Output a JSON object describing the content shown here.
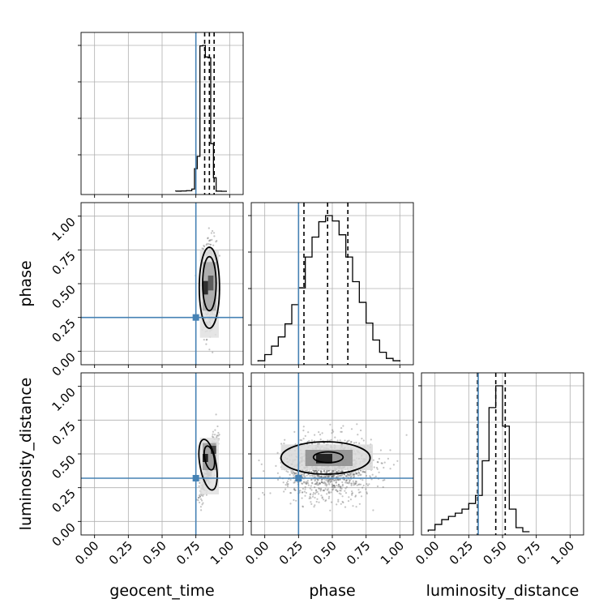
{
  "chart_data": {
    "type": "corner",
    "parameters": [
      "geocent_time",
      "phase",
      "luminosity_distance"
    ],
    "injection": {
      "geocent_time": 0.75,
      "phase": 0.25,
      "luminosity_distance": 0.32
    },
    "axis_range": [
      -0.1,
      1.1
    ],
    "tick_values": [
      0.0,
      0.25,
      0.5,
      0.75,
      1.0
    ],
    "tick_labels": [
      "0.00",
      "0.25",
      "0.50",
      "0.75",
      "1.00"
    ],
    "grid": true,
    "colors": {
      "injection": "#4682b4",
      "contour": "#000000",
      "points": "#555555"
    },
    "marginals": {
      "geocent_time": {
        "quantiles": [
          0.815,
          0.85,
          0.885
        ],
        "bin_edges": [
          0.6,
          0.64,
          0.68,
          0.72,
          0.74,
          0.76,
          0.78,
          0.8,
          0.82,
          0.84,
          0.86,
          0.88,
          0.9,
          0.94,
          0.98
        ],
        "counts": [
          1,
          2,
          4,
          14,
          142,
          220,
          915,
          918,
          845,
          840,
          300,
          85,
          1,
          0
        ]
      },
      "phase": {
        "quantiles": [
          0.29,
          0.465,
          0.615
        ],
        "bin_edges": [
          -0.05,
          0.0,
          0.05,
          0.1,
          0.15,
          0.2,
          0.25,
          0.3,
          0.35,
          0.4,
          0.45,
          0.5,
          0.55,
          0.6,
          0.65,
          0.7,
          0.75,
          0.8,
          0.85,
          0.9,
          0.95,
          1.0
        ],
        "counts": [
          5,
          45,
          100,
          160,
          245,
          370,
          480,
          680,
          810,
          910,
          950,
          915,
          825,
          680,
          520,
          385,
          250,
          140,
          60,
          20,
          5
        ]
      },
      "luminosity_distance": {
        "quantiles": [
          0.315,
          0.45,
          0.52
        ],
        "bin_edges": [
          -0.05,
          0.0,
          0.05,
          0.1,
          0.15,
          0.2,
          0.25,
          0.3,
          0.35,
          0.4,
          0.45,
          0.5,
          0.55,
          0.6,
          0.65,
          0.7
        ],
        "counts": [
          10,
          45,
          75,
          95,
          115,
          140,
          175,
          225,
          440,
          770,
          905,
          655,
          140,
          25,
          0
        ]
      }
    },
    "joints": [
      {
        "x": "geocent_time",
        "y": "phase",
        "scatter": {
          "center": [
            0.85,
            0.48
          ],
          "spread": [
            0.025,
            0.17
          ],
          "n": 650
        },
        "density_bins": [
          {
            "x": [
              0.8,
              0.84
            ],
            "y": [
              0.42,
              0.52
            ],
            "level": 0.9
          },
          {
            "x": [
              0.84,
              0.88
            ],
            "y": [
              0.45,
              0.56
            ],
            "level": 0.7
          },
          {
            "x": [
              0.8,
              0.9
            ],
            "y": [
              0.3,
              0.66
            ],
            "level": 0.35
          },
          {
            "x": [
              0.78,
              0.92
            ],
            "y": [
              0.1,
              0.75
            ],
            "level": 0.12
          }
        ],
        "contours": [
          {
            "center": [
              0.85,
              0.5
            ],
            "radius": [
              0.05,
              0.2
            ]
          },
          {
            "center": [
              0.85,
              0.47
            ],
            "radius": [
              0.075,
              0.3
            ]
          }
        ]
      },
      {
        "x": "geocent_time",
        "y": "luminosity_distance",
        "scatter": {
          "center": [
            0.85,
            0.42
          ],
          "spread": [
            0.03,
            0.11
          ],
          "n": 550,
          "correlation": 0.8
        },
        "density_bins": [
          {
            "x": [
              0.8,
              0.84
            ],
            "y": [
              0.44,
              0.5
            ],
            "level": 0.95
          },
          {
            "x": [
              0.86,
              0.9
            ],
            "y": [
              0.5,
              0.56
            ],
            "level": 0.8
          },
          {
            "x": [
              0.8,
              0.9
            ],
            "y": [
              0.38,
              0.58
            ],
            "level": 0.4
          },
          {
            "x": [
              0.78,
              0.92
            ],
            "y": [
              0.2,
              0.62
            ],
            "level": 0.12
          }
        ],
        "contours": [
          {
            "center": [
              0.85,
              0.47
            ],
            "radius": [
              0.035,
              0.09
            ],
            "tilt": 0.55
          },
          {
            "center": [
              0.84,
              0.42
            ],
            "radius": [
              0.06,
              0.19
            ],
            "tilt": 0.5
          }
        ]
      },
      {
        "x": "phase",
        "y": "luminosity_distance",
        "scatter": {
          "center": [
            0.47,
            0.4
          ],
          "spread": [
            0.16,
            0.11
          ],
          "n": 1300
        },
        "density_bins": [
          {
            "x": [
              0.38,
              0.5
            ],
            "y": [
              0.43,
              0.5
            ],
            "level": 0.95
          },
          {
            "x": [
              0.3,
              0.65
            ],
            "y": [
              0.41,
              0.53
            ],
            "level": 0.45
          },
          {
            "x": [
              0.12,
              0.8
            ],
            "y": [
              0.38,
              0.57
            ],
            "level": 0.15
          }
        ],
        "contours": [
          {
            "center": [
              0.47,
              0.475
            ],
            "radius": [
              0.11,
              0.04
            ]
          },
          {
            "center": [
              0.45,
              0.47
            ],
            "radius": [
              0.33,
              0.12
            ]
          }
        ]
      }
    ]
  }
}
